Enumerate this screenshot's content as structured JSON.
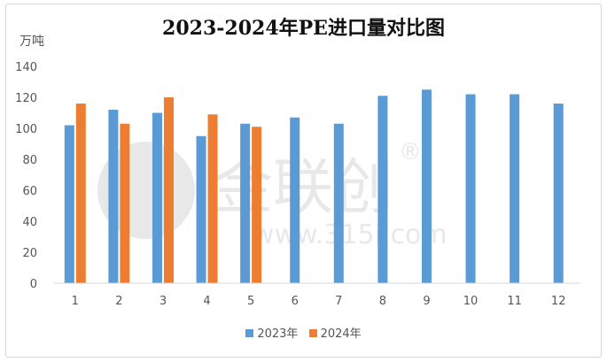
{
  "chart_data": {
    "type": "bar",
    "title": "2023-2024年PE进口量对比图",
    "ylabel": "万吨",
    "xlabel": "",
    "ylim": [
      0,
      140
    ],
    "yticks": [
      0,
      20,
      40,
      60,
      80,
      100,
      120,
      140
    ],
    "categories": [
      "1",
      "2",
      "3",
      "4",
      "5",
      "6",
      "7",
      "8",
      "9",
      "10",
      "11",
      "12"
    ],
    "series": [
      {
        "name": "2023年",
        "color": "#5b9bd5",
        "values": [
          102,
          112,
          110,
          95,
          103,
          107,
          103,
          121,
          125,
          122,
          122,
          116
        ]
      },
      {
        "name": "2024年",
        "color": "#ed7d31",
        "values": [
          116,
          103,
          120,
          109,
          101,
          null,
          null,
          null,
          null,
          null,
          null,
          null
        ]
      }
    ],
    "grid": false,
    "legend_position": "bottom"
  },
  "watermark": {
    "text": "金联创",
    "site": "www.315i.com",
    "mark": "®"
  }
}
